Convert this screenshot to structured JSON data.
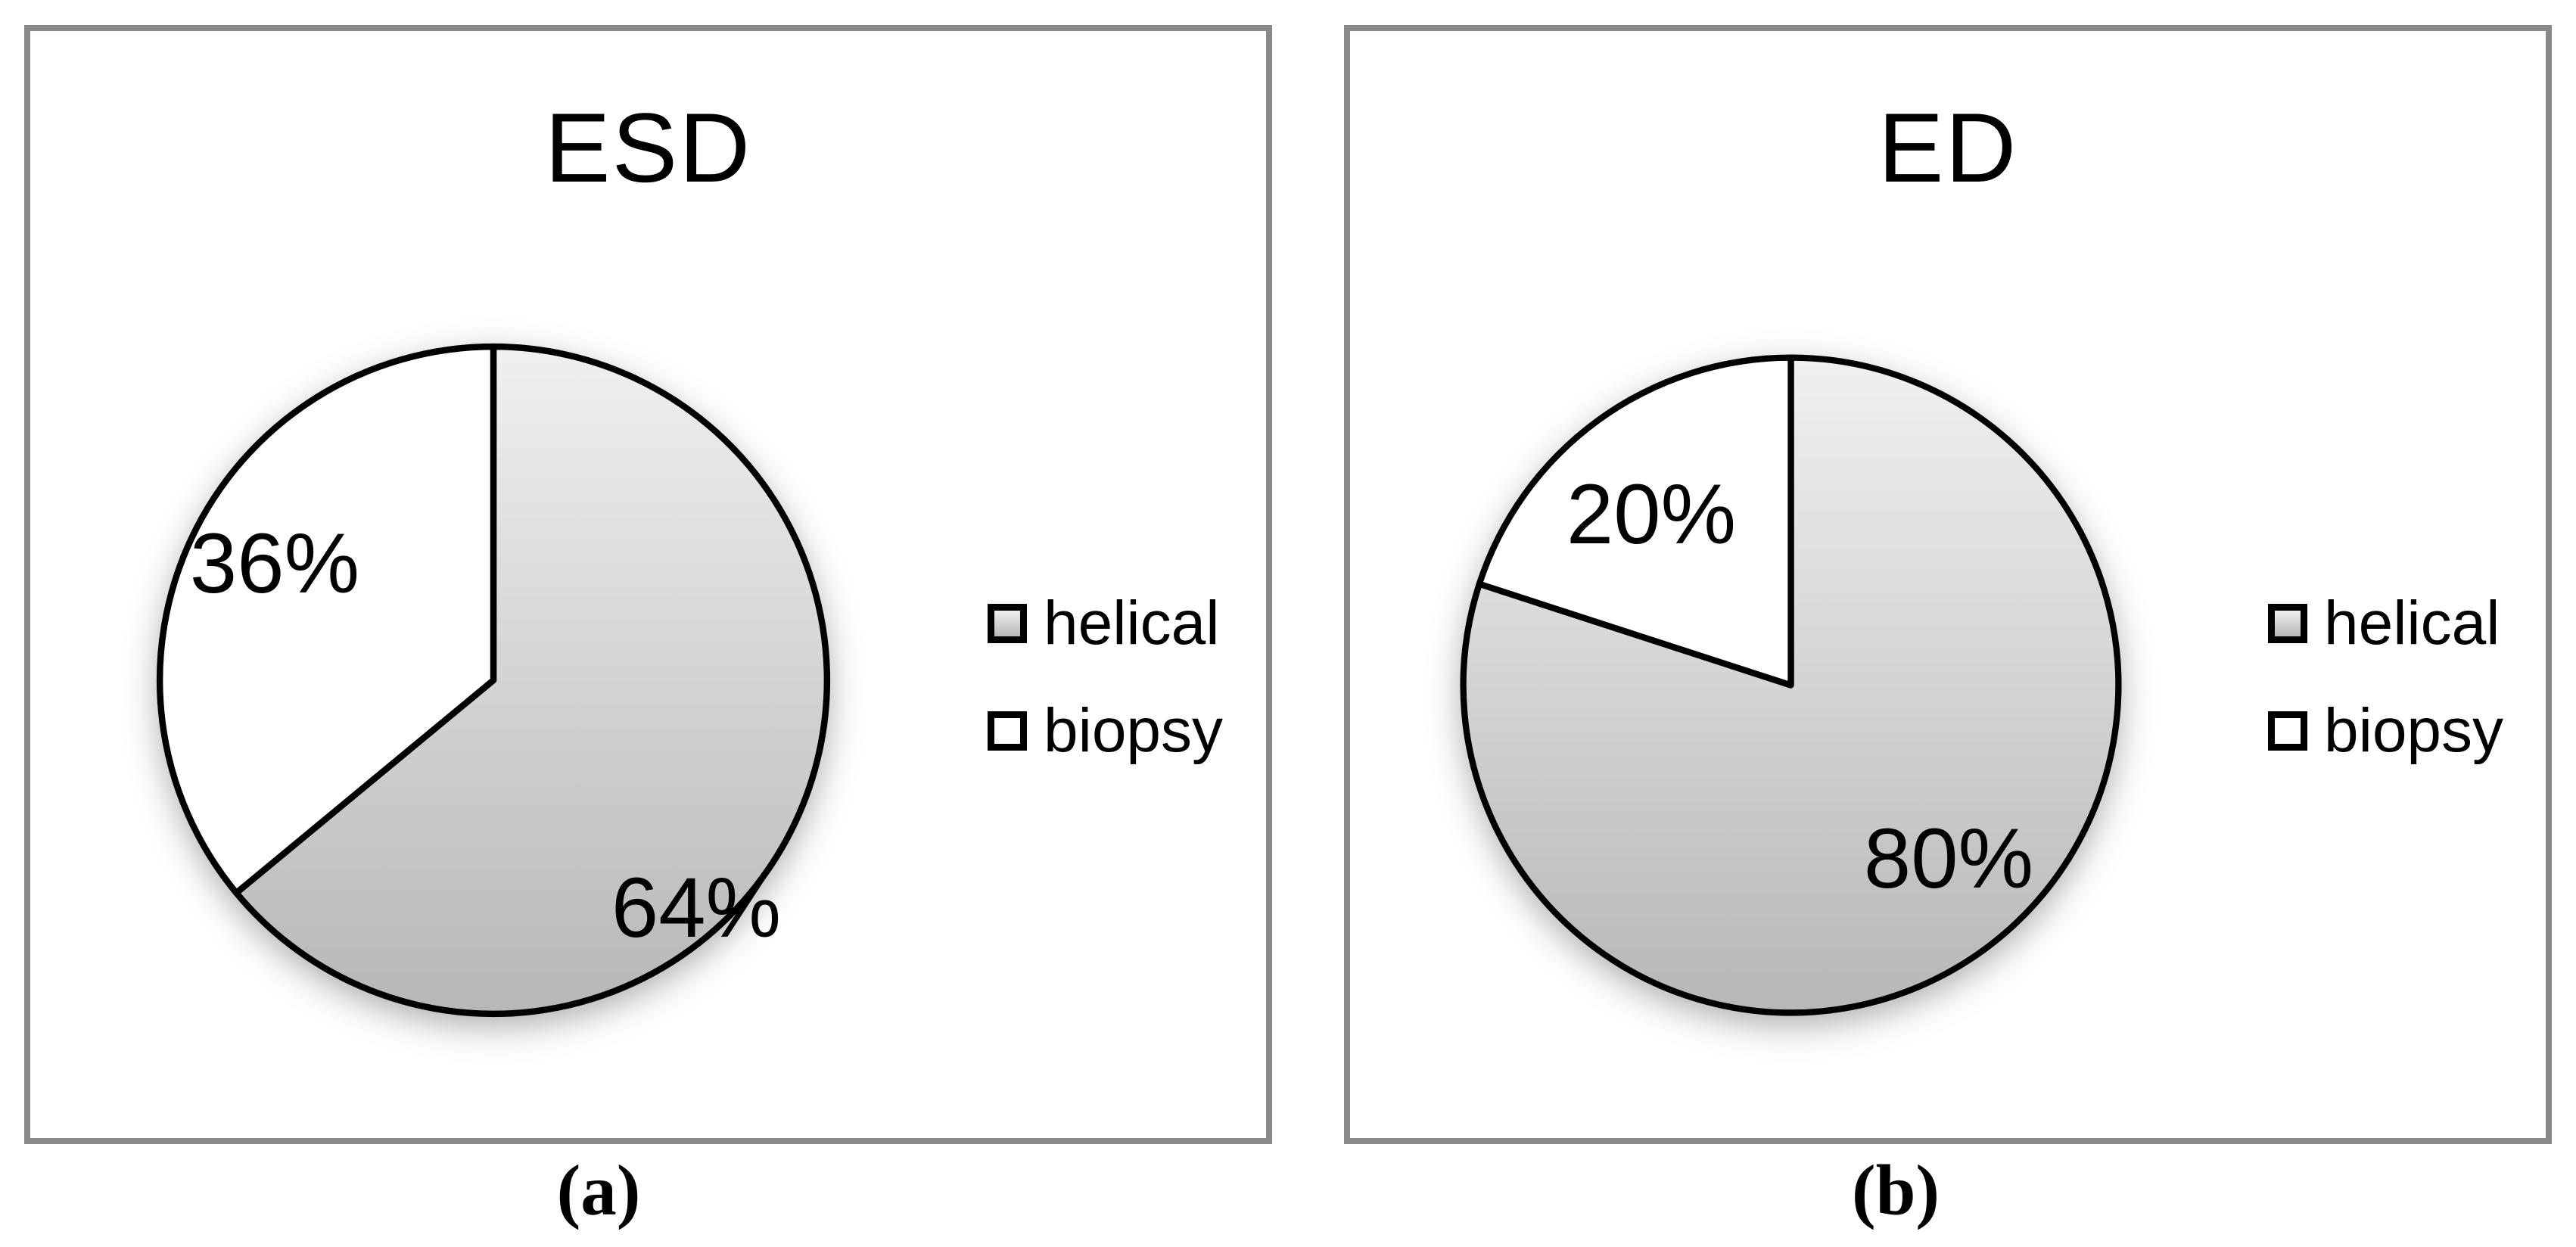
{
  "figure": {
    "type": "two-panel pie chart figure",
    "background": "#ffffff"
  },
  "colors": {
    "panel_border": "#898989",
    "outline": "#000000",
    "slice_gradient_top": "#f0f0f0",
    "slice_gradient_bottom": "#b7b7b7",
    "biopsy_fill": "#ffffff",
    "text": "#000000"
  },
  "chart_data": [
    {
      "type": "pie",
      "title": "ESD",
      "panel_caption": "(a)",
      "categories": [
        "helical",
        "biopsy"
      ],
      "labels": [
        "helical",
        "biopsy"
      ],
      "values": [
        64,
        36
      ],
      "value_labels": [
        "64%",
        "36%"
      ],
      "start_angle_deg": 0,
      "direction": "clockwise",
      "slice_fills": [
        "gray-gradient",
        "white"
      ],
      "legend_position": "right"
    },
    {
      "type": "pie",
      "title": "ED",
      "panel_caption": "(b)",
      "categories": [
        "helical",
        "biopsy"
      ],
      "labels": [
        "helical",
        "biopsy"
      ],
      "values": [
        80,
        20
      ],
      "value_labels": [
        "80%",
        "20%"
      ],
      "start_angle_deg": 0,
      "direction": "clockwise",
      "slice_fills": [
        "gray-gradient",
        "white"
      ],
      "legend_position": "right"
    }
  ]
}
